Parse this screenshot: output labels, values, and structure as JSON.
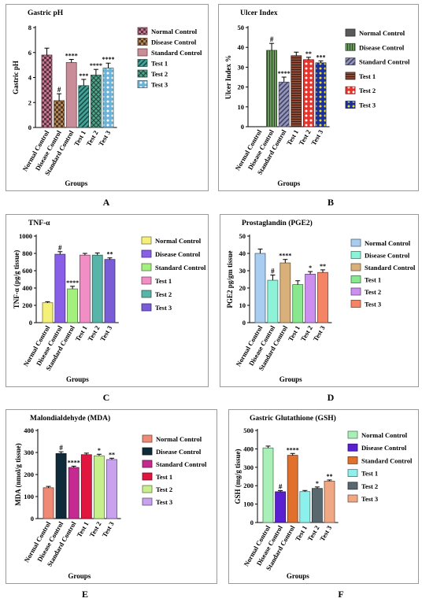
{
  "panel_letters": [
    "A",
    "B",
    "C",
    "D",
    "E",
    "F"
  ],
  "chart_data": [
    {
      "type": "bar",
      "title": "Gastric pH",
      "ylabel": "Gastric pH",
      "xlabel": "Groups",
      "categories": [
        "Normal Control",
        "Disease Control",
        "Standard Control",
        "Test 1",
        "Test 2",
        "Test 3"
      ],
      "values": [
        5.8,
        2.15,
        5.2,
        3.35,
        4.2,
        4.75
      ],
      "errors": [
        0.55,
        0.55,
        0.25,
        0.5,
        0.45,
        0.4
      ],
      "annotations": [
        "",
        "#",
        "****",
        "***",
        "****",
        "****"
      ],
      "ylim": [
        0,
        8
      ],
      "yticks": [
        "0",
        "2",
        "4",
        "6",
        "8"
      ],
      "colors": [
        "#c7748e",
        "#b58454",
        "#c98d99",
        "#3fa59a",
        "#52a88e",
        "#6db3d8"
      ],
      "patterns": [
        "check",
        "check",
        "none",
        "diag",
        "xcross",
        "dots"
      ],
      "legend": [
        "Normal Control",
        "Disease Control",
        "Standard Control",
        "Test 1",
        "Test 2",
        "Test 3"
      ],
      "legend_position": "right"
    },
    {
      "type": "bar",
      "title": "Ulcer Index",
      "ylabel": "Ulcer Index  %",
      "xlabel": "Groups",
      "categories": [
        "Normal Control",
        "Disease Control",
        "Standard Control",
        "Test 1",
        "Test 2",
        "Test 3"
      ],
      "values": [
        0,
        38.5,
        22.5,
        35.8,
        33.8,
        32.2
      ],
      "errors": [
        0,
        3.5,
        2.5,
        1.8,
        1.2,
        1.0
      ],
      "annotations": [
        "",
        "#",
        "****",
        "",
        "**",
        "***"
      ],
      "ylim": [
        0,
        50
      ],
      "yticks": [
        "0",
        "10",
        "20",
        "30",
        "40",
        "50"
      ],
      "colors": [
        "#595959",
        "#6a9a5c",
        "#9494c4",
        "#8a4a36",
        "#e8342c",
        "#1a2fa0"
      ],
      "patterns": [
        "none",
        "vert",
        "diag",
        "horiz",
        "dots",
        "dots"
      ],
      "legend": [
        "Normal Control",
        "Disease Control",
        "Standard Control",
        "Test 1",
        "Test 2",
        "Test 3"
      ],
      "legend_position": "right"
    },
    {
      "type": "bar",
      "title": "TNF-α",
      "ylabel": "TNF-α (pg/g tissue)",
      "xlabel": "Groups",
      "categories": [
        "Normal Control",
        "Disease Control",
        "Standard Control",
        "Test 1",
        "Test 2",
        "Test 3"
      ],
      "values": [
        230,
        790,
        390,
        780,
        780,
        730
      ],
      "errors": [
        12,
        30,
        30,
        20,
        25,
        18
      ],
      "annotations": [
        "",
        "#",
        "****",
        "",
        "",
        "**"
      ],
      "ylim": [
        0,
        1000
      ],
      "yticks": [
        "0",
        "200",
        "400",
        "600",
        "800",
        "1000"
      ],
      "colors": [
        "#f5f07a",
        "#8a5fe8",
        "#a4f07c",
        "#f28ec6",
        "#56b5a8",
        "#7a5cd6"
      ],
      "patterns": [
        "none",
        "none",
        "none",
        "none",
        "none",
        "none"
      ],
      "legend": [
        "Normal Control",
        "Disease Control",
        "Standard Control",
        "Test 1",
        "Test 2",
        "Test 3"
      ],
      "legend_position": "right"
    },
    {
      "type": "bar",
      "title": "Prostaglandin (PGE2)",
      "ylabel": "PGE2 pg/gm tissue",
      "xlabel": "Groups",
      "categories": [
        "Normal Control",
        "Disease Control",
        "Standard Control",
        "Test 1",
        "Test 2",
        "Test 3"
      ],
      "values": [
        40,
        24.5,
        34.5,
        22,
        28,
        29
      ],
      "errors": [
        2.5,
        3,
        2,
        2.2,
        1.5,
        1.5
      ],
      "annotations": [
        "",
        "#",
        "****",
        "",
        "*",
        "**"
      ],
      "ylim": [
        0,
        50
      ],
      "yticks": [
        "0",
        "10",
        "20",
        "30",
        "40",
        "50"
      ],
      "colors": [
        "#a8cdf0",
        "#8ef2d8",
        "#d9b07a",
        "#88e88e",
        "#cc8ff0",
        "#f58464"
      ],
      "patterns": [
        "none",
        "none",
        "none",
        "none",
        "none",
        "none"
      ],
      "legend": [
        "Normal Control",
        "Disease Control",
        "Standard Control",
        "Test 1",
        "Test 2",
        "Test 3"
      ],
      "legend_position": "right"
    },
    {
      "type": "bar",
      "title": "Malondialdehyde (MDA)",
      "ylabel": "MDA (nmol/g tissue)",
      "xlabel": "Groups",
      "categories": [
        "Normal Control",
        "Disease Control",
        "Standard Control",
        "Test 1",
        "Test 2",
        "Test 3"
      ],
      "values": [
        140,
        295,
        232,
        290,
        285,
        268
      ],
      "errors": [
        6,
        8,
        6,
        7,
        7,
        6
      ],
      "annotations": [
        "",
        "#",
        "****",
        "",
        "*",
        "**"
      ],
      "ylim": [
        0,
        400
      ],
      "yticks": [
        "0",
        "100",
        "200",
        "300",
        "400"
      ],
      "colors": [
        "#ef8a74",
        "#0f2a38",
        "#c42a90",
        "#e01640",
        "#c7f08c",
        "#c8a2ee"
      ],
      "patterns": [
        "none",
        "none",
        "none",
        "none",
        "none",
        "none"
      ],
      "legend": [
        "Normal Control",
        "Disease Control",
        "Standard Control",
        "Test 1",
        "Test 2",
        "Test 3"
      ],
      "legend_position": "right"
    },
    {
      "type": "bar",
      "title": "Gastric Glutathione (GSH)",
      "ylabel": "GSH (mg/g tissue)",
      "xlabel": "Groups",
      "categories": [
        "Normal Control",
        "Disease Control",
        "Standard Control",
        "Test 1",
        "Test 2",
        "Test 3"
      ],
      "values": [
        405,
        167,
        365,
        168,
        185,
        225
      ],
      "errors": [
        10,
        6,
        10,
        6,
        8,
        6
      ],
      "annotations": [
        "",
        "#",
        "****",
        "",
        "*",
        "**"
      ],
      "ylim": [
        0,
        500
      ],
      "yticks": [
        "0",
        "100",
        "200",
        "300",
        "400",
        "500"
      ],
      "colors": [
        "#a8f0b8",
        "#5a1fd0",
        "#e0702c",
        "#8ef0ec",
        "#58686e",
        "#f0a884"
      ],
      "patterns": [
        "none",
        "none",
        "none",
        "none",
        "none",
        "none"
      ],
      "legend": [
        "Normal Control",
        "Disease Control",
        "Standard Control",
        "Test 1",
        "Test 2",
        "Test 3"
      ],
      "legend_position": "right"
    }
  ]
}
